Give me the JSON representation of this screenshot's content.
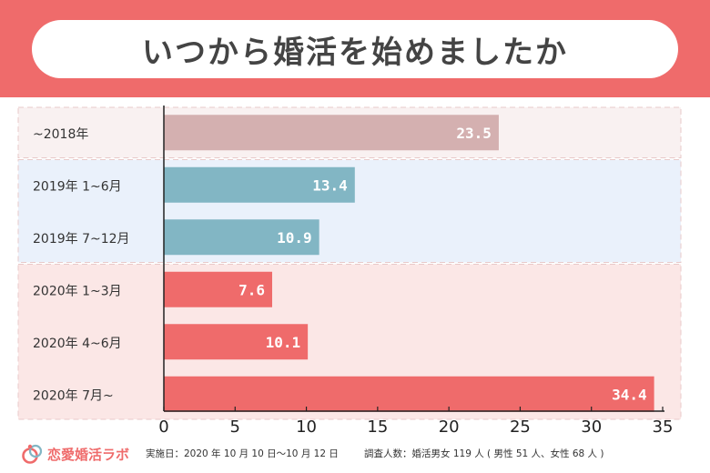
{
  "title": "いつから婚活を始めましたか",
  "chart_data": {
    "type": "bar",
    "orientation": "horizontal",
    "categories": [
      "~2018年",
      "2019年 1~6月",
      "2019年 7~12月",
      "2020年 1~3月",
      "2020年 4~6月",
      "2020年 7月~"
    ],
    "values": [
      23.5,
      13.4,
      10.9,
      7.6,
      10.1,
      34.4
    ],
    "value_labels": [
      "23.5",
      "13.4",
      "10.9",
      "7.6",
      "10.1",
      "34.4"
    ],
    "groups": [
      {
        "members": [
          0
        ],
        "band_color": "#f9f1f1",
        "bar_color": "#d4b0b0"
      },
      {
        "members": [
          1,
          2
        ],
        "band_color": "#eaf1fb",
        "bar_color": "#82b6c4"
      },
      {
        "members": [
          3,
          4,
          5
        ],
        "band_color": "#fbe7e6",
        "bar_color": "#ef6b6b"
      }
    ],
    "xlim": [
      0,
      35
    ],
    "xticks": [
      "0",
      "5",
      "10",
      "15",
      "20",
      "25",
      "30",
      "35"
    ],
    "xunit": "%",
    "grid": false
  },
  "footer": {
    "brand": "恋愛婚活ラボ",
    "date_note": "実施日：2020 年 10 月 10 日〜10 月 12 日",
    "people_note": "調査人数：婚活男女 119 人 ( 男性 51 人、女性 68 人 )"
  },
  "colors": {
    "banner": "#ef6b6b",
    "title_text": "#444444",
    "bar_value_text": "#ffffff",
    "axis": "#222222"
  }
}
